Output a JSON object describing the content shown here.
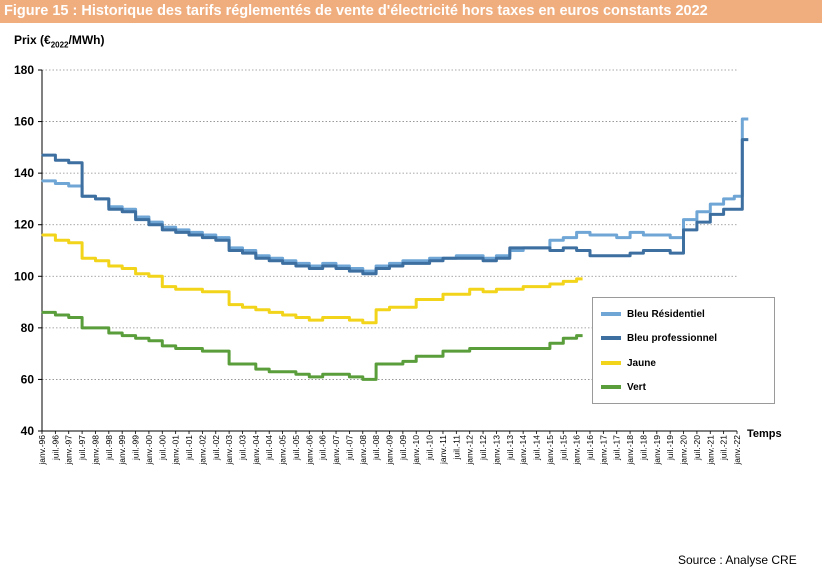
{
  "figure": {
    "title": "Figure 15 : Historique des tarifs réglementés de vente d'électricité hors taxes en euros constants 2022",
    "source": "Source : Analyse CRE"
  },
  "colors": {
    "header_bg": "#f0ae7f",
    "bleu_residentiel": "#6fa6d6",
    "bleu_professionnel": "#3d6fa0",
    "jaune": "#f2d41a",
    "vert": "#5a9e3c"
  },
  "chart_data": {
    "type": "line",
    "title": "Historique des tarifs réglementés de vente d'électricité hors taxes en euros constants 2022",
    "ylabel_main": "Prix (€",
    "ylabel_sub": "2022",
    "ylabel_tail": "/MWh)",
    "xlabel": "Temps",
    "ylim": [
      40,
      180
    ],
    "yticks": [
      40,
      60,
      80,
      100,
      120,
      140,
      160,
      180
    ],
    "grid": true,
    "legend_position": "right",
    "xticks": [
      "janv.-96",
      "juil.-96",
      "janv.-97",
      "juil.-97",
      "janv.-98",
      "juil.-98",
      "janv.-99",
      "juil.-99",
      "janv.-00",
      "juil.-00",
      "janv.-01",
      "juil.-01",
      "janv.-02",
      "juil.-02",
      "janv.-03",
      "juil.-03",
      "janv.-04",
      "juil.-04",
      "janv.-05",
      "juil.-05",
      "janv.-06",
      "juil.-06",
      "janv.-07",
      "juil.-07",
      "janv.-08",
      "juil.-08",
      "janv.-09",
      "juil.-09",
      "janv.-10",
      "juil.-10",
      "janv.-11",
      "juil.-11",
      "janv.-12",
      "juil.-12",
      "janv.-13",
      "juil.-13",
      "janv.-14",
      "juil.-14",
      "janv.-15",
      "juil.-15",
      "janv.-16",
      "juil.-16",
      "janv.-17",
      "juil.-17",
      "janv.-18",
      "juil.-18",
      "janv.-19",
      "juil.-19",
      "janv.-20",
      "juil.-20",
      "janv.-21",
      "juil.-21",
      "janv.-22"
    ],
    "series": [
      {
        "name": "Bleu Résidentiel",
        "color": "#6fa6d6",
        "x": [
          1996.0,
          1996.5,
          1997.0,
          1997.5,
          1998.0,
          1998.5,
          1999.0,
          1999.5,
          2000.0,
          2000.5,
          2001.0,
          2001.5,
          2002.0,
          2002.5,
          2003.0,
          2003.5,
          2004.0,
          2004.5,
          2005.0,
          2005.5,
          2006.0,
          2006.5,
          2007.0,
          2007.5,
          2008.0,
          2008.5,
          2009.0,
          2009.5,
          2010.0,
          2010.5,
          2011.0,
          2011.5,
          2012.0,
          2012.5,
          2013.0,
          2013.5,
          2014.0,
          2014.5,
          2015.0,
          2015.5,
          2016.0,
          2016.5,
          2017.0,
          2017.5,
          2018.0,
          2018.5,
          2019.0,
          2019.5,
          2020.0,
          2020.5,
          2021.0,
          2021.5,
          2021.9,
          2022.2
        ],
        "values": [
          137,
          136,
          135,
          131,
          130,
          127,
          126,
          123,
          121,
          119,
          118,
          117,
          116,
          115,
          111,
          110,
          108,
          107,
          106,
          105,
          104,
          105,
          104,
          103,
          102,
          104,
          105,
          106,
          106,
          107,
          107,
          108,
          108,
          107,
          108,
          110,
          111,
          111,
          114,
          115,
          117,
          116,
          116,
          115,
          117,
          116,
          116,
          115,
          122,
          125,
          128,
          130,
          131,
          161
        ]
      },
      {
        "name": "Bleu professionnel",
        "color": "#3d6fa0",
        "x": [
          1996.0,
          1996.5,
          1997.0,
          1997.5,
          1998.0,
          1998.5,
          1999.0,
          1999.5,
          2000.0,
          2000.5,
          2001.0,
          2001.5,
          2002.0,
          2002.5,
          2003.0,
          2003.5,
          2004.0,
          2004.5,
          2005.0,
          2005.5,
          2006.0,
          2006.5,
          2007.0,
          2007.5,
          2008.0,
          2008.5,
          2009.0,
          2009.5,
          2010.0,
          2010.5,
          2011.0,
          2011.5,
          2012.0,
          2012.5,
          2013.0,
          2013.5,
          2014.0,
          2014.5,
          2015.0,
          2015.5,
          2016.0,
          2016.5,
          2017.0,
          2017.5,
          2018.0,
          2018.5,
          2019.0,
          2019.5,
          2020.0,
          2020.5,
          2021.0,
          2021.5,
          2021.9,
          2022.2
        ],
        "values": [
          147,
          145,
          144,
          131,
          130,
          126,
          125,
          122,
          120,
          118,
          117,
          116,
          115,
          114,
          110,
          109,
          107,
          106,
          105,
          104,
          103,
          104,
          103,
          102,
          101,
          103,
          104,
          105,
          105,
          106,
          107,
          107,
          107,
          106,
          107,
          111,
          111,
          111,
          110,
          111,
          110,
          108,
          108,
          108,
          109,
          110,
          110,
          109,
          118,
          121,
          124,
          126,
          126,
          153
        ]
      },
      {
        "name": "Jaune",
        "color": "#f2d41a",
        "x": [
          1996.0,
          1996.5,
          1997.0,
          1997.5,
          1998.0,
          1998.5,
          1999.0,
          1999.5,
          2000.0,
          2000.5,
          2001.0,
          2001.5,
          2002.0,
          2002.5,
          2003.0,
          2003.5,
          2004.0,
          2004.5,
          2005.0,
          2005.5,
          2006.0,
          2006.5,
          2007.0,
          2007.5,
          2008.0,
          2008.5,
          2009.0,
          2009.5,
          2010.0,
          2010.5,
          2011.0,
          2011.5,
          2012.0,
          2012.5,
          2013.0,
          2013.5,
          2014.0,
          2014.5,
          2015.0,
          2015.5,
          2016.0
        ],
        "values": [
          116,
          114,
          113,
          107,
          106,
          104,
          103,
          101,
          100,
          96,
          95,
          95,
          94,
          94,
          89,
          88,
          87,
          86,
          85,
          84,
          83,
          84,
          84,
          83,
          82,
          87,
          88,
          88,
          91,
          91,
          93,
          93,
          95,
          94,
          95,
          95,
          96,
          96,
          97,
          98,
          99
        ]
      },
      {
        "name": "Vert",
        "color": "#5a9e3c",
        "x": [
          1996.0,
          1996.5,
          1997.0,
          1997.5,
          1998.0,
          1998.5,
          1999.0,
          1999.5,
          2000.0,
          2000.5,
          2001.0,
          2001.5,
          2002.0,
          2002.5,
          2003.0,
          2003.5,
          2004.0,
          2004.5,
          2005.0,
          2005.5,
          2006.0,
          2006.5,
          2007.0,
          2007.5,
          2008.0,
          2008.5,
          2009.0,
          2009.5,
          2010.0,
          2010.5,
          2011.0,
          2011.5,
          2012.0,
          2012.5,
          2013.0,
          2013.5,
          2014.0,
          2014.5,
          2015.0,
          2015.5,
          2016.0
        ],
        "values": [
          86,
          85,
          84,
          80,
          80,
          78,
          77,
          76,
          75,
          73,
          72,
          72,
          71,
          71,
          66,
          66,
          64,
          63,
          63,
          62,
          61,
          62,
          62,
          61,
          60,
          66,
          66,
          67,
          69,
          69,
          71,
          71,
          72,
          72,
          72,
          72,
          72,
          72,
          74,
          76,
          77
        ]
      }
    ]
  }
}
